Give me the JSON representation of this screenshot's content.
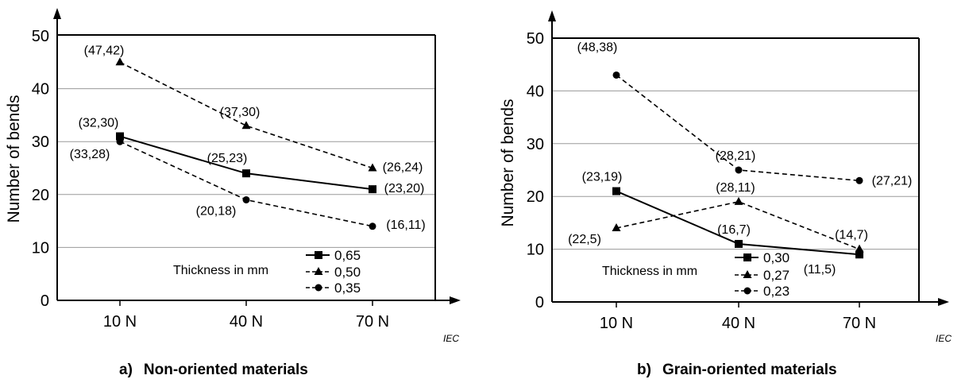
{
  "chart_data": [
    {
      "type": "line",
      "panel_label": "a)",
      "caption": "Non-oriented materials",
      "ylabel": "Number of bends",
      "categories": [
        "10 N",
        "40 N",
        "70 N"
      ],
      "ylim": [
        0,
        50
      ],
      "yticks": [
        0,
        10,
        20,
        30,
        40,
        50
      ],
      "grid": true,
      "corner_label": "IEC",
      "legend_title": "Thickness in mm",
      "legend_position": "bottom-right",
      "series": [
        {
          "name": "0,65",
          "marker": "square",
          "dash": "solid",
          "values": [
            31,
            24,
            21
          ],
          "labels": [
            "(32,30)",
            "(25,23)",
            "(23,20)"
          ]
        },
        {
          "name": "0,50",
          "marker": "triangle",
          "dash": "dashed",
          "values": [
            45,
            33,
            25
          ],
          "labels": [
            "(47,42)",
            "(37,30)",
            "(26,24)"
          ]
        },
        {
          "name": "0,35",
          "marker": "circle",
          "dash": "dashed",
          "values": [
            30,
            19,
            14
          ],
          "labels": [
            "(33,28)",
            "(20,18)",
            "(16,11)"
          ]
        }
      ]
    },
    {
      "type": "line",
      "panel_label": "b)",
      "caption": "Grain-oriented materials",
      "ylabel": "Number of bends",
      "categories": [
        "10 N",
        "40 N",
        "70 N"
      ],
      "ylim": [
        0,
        50
      ],
      "yticks": [
        0,
        10,
        20,
        30,
        40,
        50
      ],
      "grid": true,
      "corner_label": "IEC",
      "legend_title": "Thickness in mm",
      "legend_position": "bottom-right",
      "series": [
        {
          "name": "0,30",
          "marker": "square",
          "dash": "solid",
          "values": [
            21,
            11,
            9
          ],
          "labels": [
            "(23,19)",
            "(16,7)",
            "(11,5)"
          ]
        },
        {
          "name": "0,27",
          "marker": "triangle",
          "dash": "dashed",
          "values": [
            14,
            19,
            10
          ],
          "labels": [
            "(22,5)",
            "(28,11)",
            "(14,7)"
          ]
        },
        {
          "name": "0,23",
          "marker": "circle",
          "dash": "dashed",
          "values": [
            43,
            25,
            23
          ],
          "labels": [
            "(48,38)",
            "(28,21)",
            "(27,21)"
          ]
        }
      ]
    }
  ]
}
